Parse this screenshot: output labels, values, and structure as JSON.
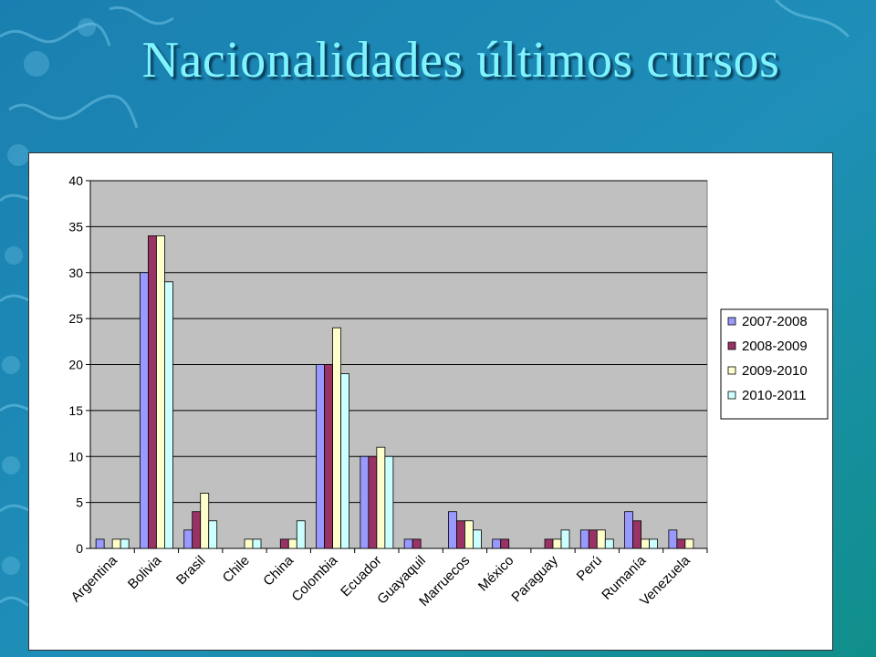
{
  "slide": {
    "title": "Nacionalidades últimos cursos"
  },
  "chart_data": {
    "type": "bar",
    "categories": [
      "Argentina",
      "Bolivia",
      "Brasil",
      "Chile",
      "China",
      "Colombia",
      "Ecuador",
      "Guayaquil",
      "Marruecos",
      "México",
      "Paraguay",
      "Perú",
      "Rumanía",
      "Venezuela"
    ],
    "series": [
      {
        "name": "2007-2008",
        "color": "#9999ff",
        "values": [
          1,
          30,
          2,
          0,
          0,
          20,
          10,
          1,
          4,
          1,
          0,
          2,
          4,
          2
        ]
      },
      {
        "name": "2008-2009",
        "color": "#993366",
        "values": [
          0,
          34,
          4,
          0,
          1,
          20,
          10,
          1,
          3,
          1,
          1,
          2,
          3,
          1
        ]
      },
      {
        "name": "2009-2010",
        "color": "#ffffcc",
        "values": [
          1,
          34,
          6,
          1,
          1,
          24,
          11,
          0,
          3,
          0,
          1,
          2,
          1,
          1
        ]
      },
      {
        "name": "2010-2011",
        "color": "#ccffff",
        "values": [
          1,
          29,
          3,
          1,
          3,
          19,
          10,
          0,
          2,
          0,
          2,
          1,
          1,
          0
        ]
      }
    ],
    "ylim": [
      0,
      40
    ],
    "yticks": [
      "0",
      "5",
      "10",
      "15",
      "20",
      "25",
      "30",
      "35",
      "40"
    ],
    "grid": true,
    "plot_background": "#c0c0c0",
    "legend_position": "right"
  }
}
